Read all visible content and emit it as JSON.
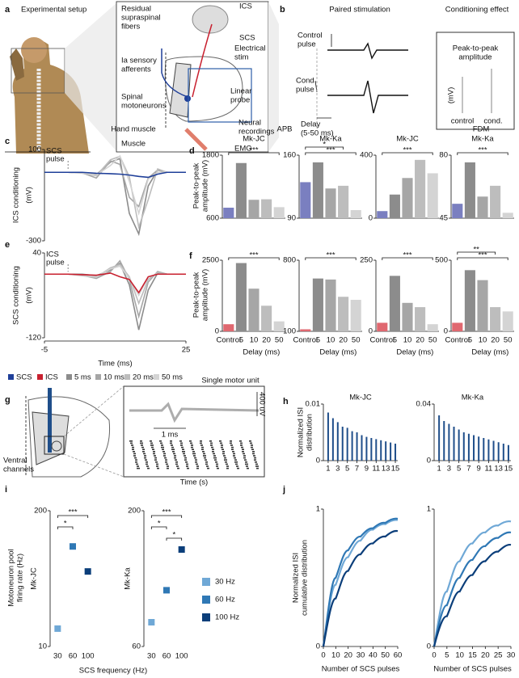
{
  "a": {
    "letter": "a",
    "title": "Experimental setup",
    "residual": [
      "Residual",
      "supraspinal",
      "fibers"
    ],
    "ics": "ICS",
    "stim": [
      "Electrical",
      "stim"
    ],
    "scs": "SCS",
    "afferents": [
      "Ia sensory",
      "afferents"
    ],
    "motoneurons": [
      "Spinal",
      "motoneurons"
    ],
    "probe": [
      "Linear",
      "probe"
    ],
    "recordings": [
      "Neural",
      "recordings"
    ],
    "muscle": "Muscle",
    "emg": "EMG"
  },
  "b": {
    "letter": "b",
    "title": "Paired stimulation",
    "title2": "Conditioning effect",
    "control": [
      "Control",
      "pulse"
    ],
    "cond": [
      "Cond.",
      "pulse"
    ],
    "delay": [
      "Delay",
      "(5-50 ms)"
    ],
    "box_title": [
      "Peak-to-peak",
      "amplitude"
    ],
    "unit": "(mV)",
    "control_label": "control",
    "cond_label": "cond."
  },
  "legend": [
    {
      "name": "SCS",
      "color": "#1f3f99"
    },
    {
      "name": "ICS",
      "color": "#c8202f"
    },
    {
      "name": "5 ms",
      "color": "#8c8c8c"
    },
    {
      "name": "10 ms",
      "color": "#a6a6a6"
    },
    {
      "name": "20 ms",
      "color": "#bdbdbd"
    },
    {
      "name": "50 ms",
      "color": "#d4d4d4"
    }
  ],
  "c": {
    "letter": "c",
    "header": "Hand muscle",
    "ylabel": "ICS conditioning",
    "unit": "(mV)",
    "annotation": [
      "SCS",
      "pulse"
    ],
    "ylim": [
      -300,
      100
    ],
    "yticks": [
      100,
      -300
    ],
    "x": [
      -5,
      0,
      3,
      6,
      9,
      11,
      13,
      15,
      17,
      19,
      21,
      25
    ],
    "series": [
      {
        "color": "#8c8c8c",
        "values": [
          0,
          0,
          -2,
          -10,
          45,
          60,
          -180,
          -270,
          -60,
          10,
          0,
          0
        ]
      },
      {
        "color": "#a6a6a6",
        "values": [
          0,
          0,
          -2,
          -25,
          50,
          35,
          -110,
          -150,
          -25,
          10,
          0,
          0
        ]
      },
      {
        "color": "#bdbdbd",
        "values": [
          0,
          0,
          -4,
          -15,
          55,
          70,
          -20,
          -240,
          -120,
          15,
          0,
          0
        ]
      },
      {
        "color": "#d4d4d4",
        "values": [
          0,
          0,
          -2,
          -12,
          30,
          72,
          -40,
          -180,
          -30,
          0,
          0,
          0
        ]
      },
      {
        "color": "#1f3f99",
        "values": [
          0,
          0,
          0,
          -4,
          -6,
          -8,
          -12,
          -18,
          -22,
          -8,
          0,
          0
        ]
      }
    ]
  },
  "e": {
    "letter": "e",
    "ylabel": "SCS conditioning",
    "unit": "(mV)",
    "annotation": [
      "ICS",
      "pulse"
    ],
    "ylim": [
      -120,
      40
    ],
    "yticks": [
      40,
      -120
    ],
    "xlim": [
      -5,
      25
    ],
    "xticks": [
      -5,
      25
    ],
    "xlabel": "Time (ms)",
    "x": [
      -5,
      0,
      3,
      6,
      9,
      11,
      13,
      15,
      17,
      19,
      21,
      25
    ],
    "series": [
      {
        "color": "#8c8c8c",
        "values": [
          0,
          0,
          0,
          -3,
          8,
          20,
          -20,
          -105,
          -30,
          2,
          0,
          0
        ]
      },
      {
        "color": "#a6a6a6",
        "values": [
          0,
          0,
          -2,
          -8,
          5,
          25,
          -10,
          -80,
          -15,
          5,
          0,
          0
        ]
      },
      {
        "color": "#bdbdbd",
        "values": [
          0,
          0,
          -3,
          -6,
          12,
          18,
          -5,
          -55,
          -10,
          3,
          0,
          0
        ]
      },
      {
        "color": "#d4d4d4",
        "values": [
          0,
          0,
          -2,
          -5,
          10,
          15,
          -8,
          -40,
          -5,
          0,
          0,
          0
        ]
      },
      {
        "color": "#c8202f",
        "values": [
          0,
          0,
          -1,
          -2,
          2,
          -5,
          -10,
          -35,
          -5,
          0,
          0,
          0
        ]
      }
    ]
  },
  "d": {
    "letter": "d",
    "groups": [
      "APB",
      "FDM"
    ],
    "ylabel": [
      "Peak-to-peak",
      "amplitude (mV)"
    ],
    "colors": [
      "#7a7fc0",
      "#8c8c8c",
      "#a6a6a6",
      "#bdbdbd",
      "#d4d4d4"
    ],
    "charts": [
      {
        "title": "Mk-JC",
        "ylim": [
          600,
          1800
        ],
        "yticks": [
          600,
          1800
        ],
        "values": [
          800,
          1650,
          950,
          960,
          810
        ],
        "significance": [
          "***"
        ]
      },
      {
        "title": "Mk-Ka",
        "ylim": [
          90,
          160
        ],
        "yticks": [
          90,
          160
        ],
        "values": [
          130,
          152,
          123,
          126,
          99
        ],
        "significance": [
          "***",
          "*"
        ]
      },
      {
        "title": "Mk-JC",
        "ylim": [
          0,
          400
        ],
        "yticks": [
          0,
          400
        ],
        "values": [
          45,
          150,
          255,
          370,
          285
        ],
        "significance": [
          "***"
        ]
      },
      {
        "title": "Mk-Ka",
        "ylim": [
          45,
          80
        ],
        "yticks": [
          45,
          80
        ],
        "values": [
          53,
          76,
          57,
          63,
          48
        ],
        "significance": [
          "***"
        ]
      }
    ]
  },
  "f": {
    "letter": "f",
    "ylabel": [
      "Peak-to-peak",
      "amplitude (mV)"
    ],
    "colors": [
      "#e06870",
      "#8c8c8c",
      "#a6a6a6",
      "#bdbdbd",
      "#d4d4d4"
    ],
    "categories": [
      "Control",
      "5",
      "10",
      "20",
      "50"
    ],
    "xlabel": "Delay (ms)",
    "charts": [
      {
        "ylim": [
          0,
          2500
        ],
        "yticks": [
          0,
          2500
        ],
        "values": [
          250,
          2400,
          1500,
          900,
          350
        ],
        "significance": [
          "***"
        ]
      },
      {
        "ylim": [
          100,
          800
        ],
        "yticks": [
          100,
          800
        ],
        "values": [
          120,
          620,
          610,
          440,
          410
        ],
        "significance": [
          "***"
        ]
      },
      {
        "ylim": [
          0,
          250
        ],
        "yticks": [
          0,
          250
        ],
        "values": [
          30,
          195,
          100,
          85,
          25
        ],
        "significance": [
          "***"
        ]
      },
      {
        "ylim": [
          0,
          500
        ],
        "yticks": [
          0,
          500
        ],
        "values": [
          60,
          430,
          360,
          170,
          140
        ],
        "significance": [
          "***",
          "**"
        ]
      }
    ]
  },
  "g": {
    "letter": "g",
    "title": "Single motor unit",
    "scale_v": "400 uV",
    "scale_t": "1 ms",
    "xlabel": "Time (s)",
    "channels": [
      "Ventral",
      "channels"
    ]
  },
  "h": {
    "letter": "h",
    "ylabel": [
      "Normalized ISI",
      "distribution"
    ],
    "xticks": [
      1,
      3,
      5,
      7,
      9,
      11,
      13,
      15
    ],
    "xlim": [
      0,
      15.5
    ],
    "x": [
      1,
      2,
      3,
      4,
      5,
      6,
      7,
      8,
      9,
      10,
      11,
      12,
      13,
      14,
      15
    ],
    "charts": [
      {
        "title": "Mk-JC",
        "ylim": [
          0,
          0.01
        ],
        "yticks": [
          0,
          0.01
        ],
        "values": [
          0.0085,
          0.0075,
          0.0068,
          0.006,
          0.0058,
          0.0052,
          0.005,
          0.0045,
          0.0042,
          0.004,
          0.0038,
          0.0036,
          0.0034,
          0.0032,
          0.003
        ]
      },
      {
        "title": "Mk-Ka",
        "ylim": [
          0,
          0.04
        ],
        "yticks": [
          0,
          0.04
        ],
        "values": [
          0.032,
          0.028,
          0.026,
          0.024,
          0.022,
          0.02,
          0.019,
          0.018,
          0.017,
          0.016,
          0.015,
          0.014,
          0.013,
          0.012,
          0.011
        ]
      }
    ]
  },
  "i": {
    "letter": "i",
    "ylabel": [
      "Motoneuron pool",
      "firing rate (Hz)"
    ],
    "categories": [
      "30",
      "60",
      "100"
    ],
    "xlabel": "SCS frequency (Hz)",
    "legend": [
      {
        "name": "30 Hz",
        "color": "#6fa8d6"
      },
      {
        "name": "60 Hz",
        "color": "#2f78b5"
      },
      {
        "name": "100 Hz",
        "color": "#0b3e7a"
      }
    ],
    "charts": [
      {
        "ylabel": "Mk-JC",
        "ylim": [
          10,
          200
        ],
        "yticks": [
          10,
          200
        ],
        "values": [
          35,
          150,
          115
        ],
        "significance": [
          "***",
          "*"
        ]
      },
      {
        "ylabel": "Mk-Ka",
        "ylim": [
          60,
          200
        ],
        "yticks": [
          60,
          200
        ],
        "values": [
          85,
          118,
          160
        ],
        "significance": [
          "***",
          "*",
          "*"
        ]
      }
    ]
  },
  "j": {
    "letter": "j",
    "ylabel": [
      "Normalized ISI",
      "cumulative distribution"
    ],
    "ylim": [
      0,
      1
    ],
    "yticks": [
      0,
      1
    ],
    "charts": [
      {
        "xlabel": "Number of SCS pulses",
        "xlim": [
          0,
          60
        ],
        "xticks": [
          0,
          10,
          20,
          30,
          40,
          50,
          60
        ],
        "x": [
          0,
          10,
          20,
          30,
          40,
          50,
          60
        ],
        "series": [
          {
            "color": "#6fa8d6",
            "values": [
              0,
              0.45,
              0.65,
              0.77,
              0.85,
              0.89,
              0.92
            ]
          },
          {
            "color": "#2f78b5",
            "values": [
              0,
              0.5,
              0.7,
              0.8,
              0.86,
              0.9,
              0.93
            ]
          },
          {
            "color": "#0b3e7a",
            "values": [
              0,
              0.35,
              0.55,
              0.67,
              0.75,
              0.8,
              0.84
            ]
          }
        ]
      },
      {
        "xlabel": "Number of SCS pulses",
        "xlim": [
          0,
          30
        ],
        "xticks": [
          0,
          5,
          10,
          15,
          20,
          25,
          30
        ],
        "x": [
          0,
          5,
          10,
          15,
          20,
          25,
          30
        ],
        "series": [
          {
            "color": "#6fa8d6",
            "values": [
              0,
              0.4,
              0.62,
              0.75,
              0.83,
              0.88,
              0.91
            ]
          },
          {
            "color": "#2f78b5",
            "values": [
              0,
              0.3,
              0.5,
              0.63,
              0.73,
              0.79,
              0.83
            ]
          },
          {
            "color": "#0b3e7a",
            "values": [
              0,
              0.22,
              0.4,
              0.52,
              0.62,
              0.69,
              0.74
            ]
          }
        ]
      }
    ]
  }
}
